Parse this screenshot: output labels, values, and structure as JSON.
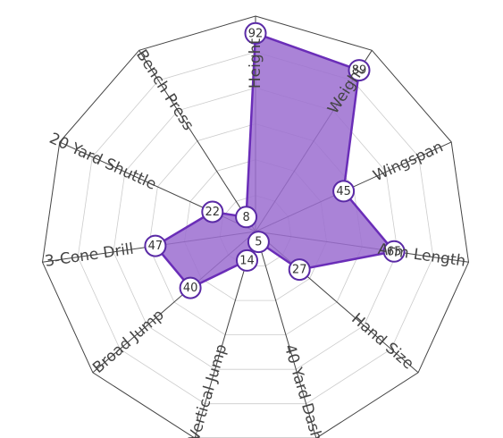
{
  "chart_data": {
    "type": "radar",
    "title": "",
    "categories": [
      "Height",
      "Weight",
      "Wingspan",
      "Arm Length",
      "Hand Size",
      "40 Yard Dash",
      "Vertical Jump",
      "Broad Jump",
      "3-Cone Drill",
      "20 Yard Shuttle",
      "Bench Press"
    ],
    "series": [
      {
        "values": [
          92,
          89,
          45,
          65,
          27,
          5,
          14,
          40,
          47,
          22,
          8
        ]
      }
    ],
    "range": [
      0,
      100
    ],
    "grid": true,
    "colors": {
      "fill": "#9b6dd0",
      "stroke": "#6a2db8",
      "marker_stroke": "#5a2aa6",
      "marker_fill": "#ffffff",
      "outer_ring": "#444444",
      "grid": "#cccccc"
    }
  }
}
